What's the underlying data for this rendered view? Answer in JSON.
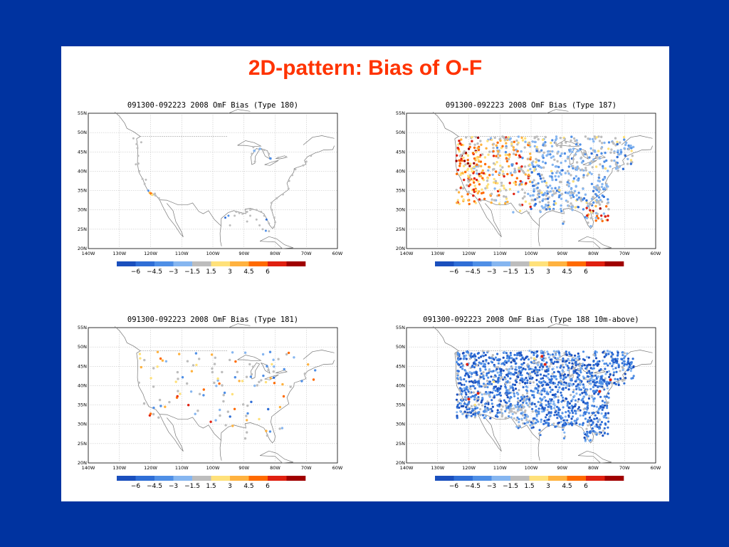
{
  "slide": {
    "title": "2D-pattern: Bias of O-F"
  },
  "colorbar": {
    "colors": [
      "#1a4fbd",
      "#2f6ed6",
      "#4f8fe6",
      "#86b6f0",
      "#bdbdbd",
      "#ffe17a",
      "#ffb23f",
      "#ff6a00",
      "#e02010",
      "#a00000"
    ],
    "labels": [
      "-6",
      "-4.5",
      "-3",
      "-1.5",
      "1.5",
      "3",
      "4.5",
      "6"
    ]
  },
  "axes": {
    "lon_labels": [
      "140W",
      "130W",
      "120W",
      "110W",
      "100W",
      "90W",
      "80W",
      "70W",
      "60W"
    ],
    "lat_labels": [
      "20N",
      "25N",
      "30N",
      "35N",
      "40N",
      "45N",
      "50N",
      "55N"
    ],
    "lon_range": [
      -140,
      -60
    ],
    "lat_range": [
      20,
      55
    ]
  },
  "panels": [
    {
      "id": "type180",
      "title": "091300-092223 2008 OmF Bias (Type 180)",
      "density": "coastal-sparse"
    },
    {
      "id": "type187",
      "title": "091300-092223 2008 OmF Bias (Type 187)",
      "density": "dense-mixed"
    },
    {
      "id": "type181",
      "title": "091300-092223 2008 OmF Bias (Type 181)",
      "density": "sparse-mixed"
    },
    {
      "id": "type188",
      "title": "091300-092223 2008 OmF Bias (Type 188 10m-above)",
      "density": "dense-blue"
    }
  ]
}
